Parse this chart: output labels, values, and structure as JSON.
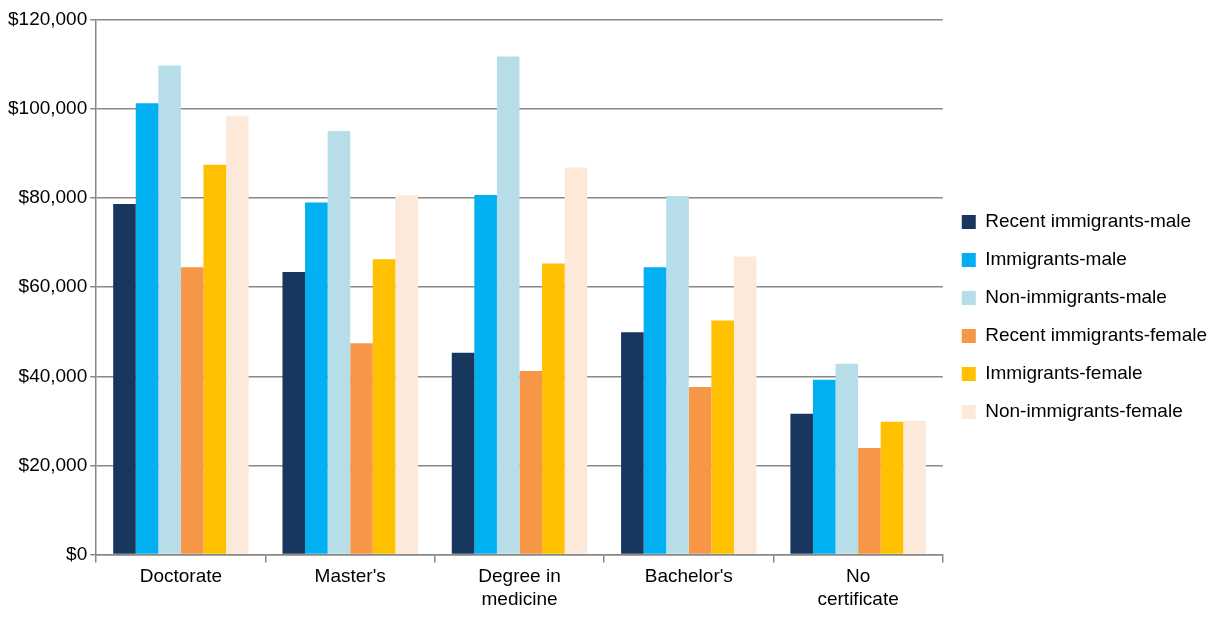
{
  "chart_data": {
    "type": "bar",
    "categories": [
      "Doctorate",
      "Master's",
      "Degree in medicine",
      "Bachelor's",
      "No certificate"
    ],
    "series": [
      {
        "name": "Recent immigrants-male",
        "color": "#17375e",
        "values": [
          78700,
          63400,
          45300,
          49900,
          31600
        ]
      },
      {
        "name": "Immigrants-male",
        "color": "#00b0f0",
        "values": [
          101300,
          79000,
          80700,
          64500,
          39200
        ]
      },
      {
        "name": "Non-immigrants-male",
        "color": "#b7dde8",
        "values": [
          109800,
          95100,
          111800,
          80500,
          42800
        ]
      },
      {
        "name": "Recent immigrants-female",
        "color": "#f79646",
        "values": [
          64500,
          47400,
          41200,
          37600,
          23900
        ]
      },
      {
        "name": "Immigrants-female",
        "color": "#ffc000",
        "values": [
          87500,
          66300,
          65300,
          52500,
          29800
        ]
      },
      {
        "name": "Non-immigrants-female",
        "color": "#fde9d9",
        "values": [
          98400,
          80600,
          86900,
          66900,
          30000
        ]
      }
    ],
    "ylim": [
      0,
      120000
    ],
    "yticks": [
      {
        "value": 0,
        "label": "$0"
      },
      {
        "value": 20000,
        "label": "$20,000"
      },
      {
        "value": 40000,
        "label": "$40,000"
      },
      {
        "value": 60000,
        "label": "$60,000"
      },
      {
        "value": 80000,
        "label": "$80,000"
      },
      {
        "value": 100000,
        "label": "$100,000"
      },
      {
        "value": 120000,
        "label": "$120,000"
      }
    ],
    "grid": "y",
    "legend": "right"
  }
}
